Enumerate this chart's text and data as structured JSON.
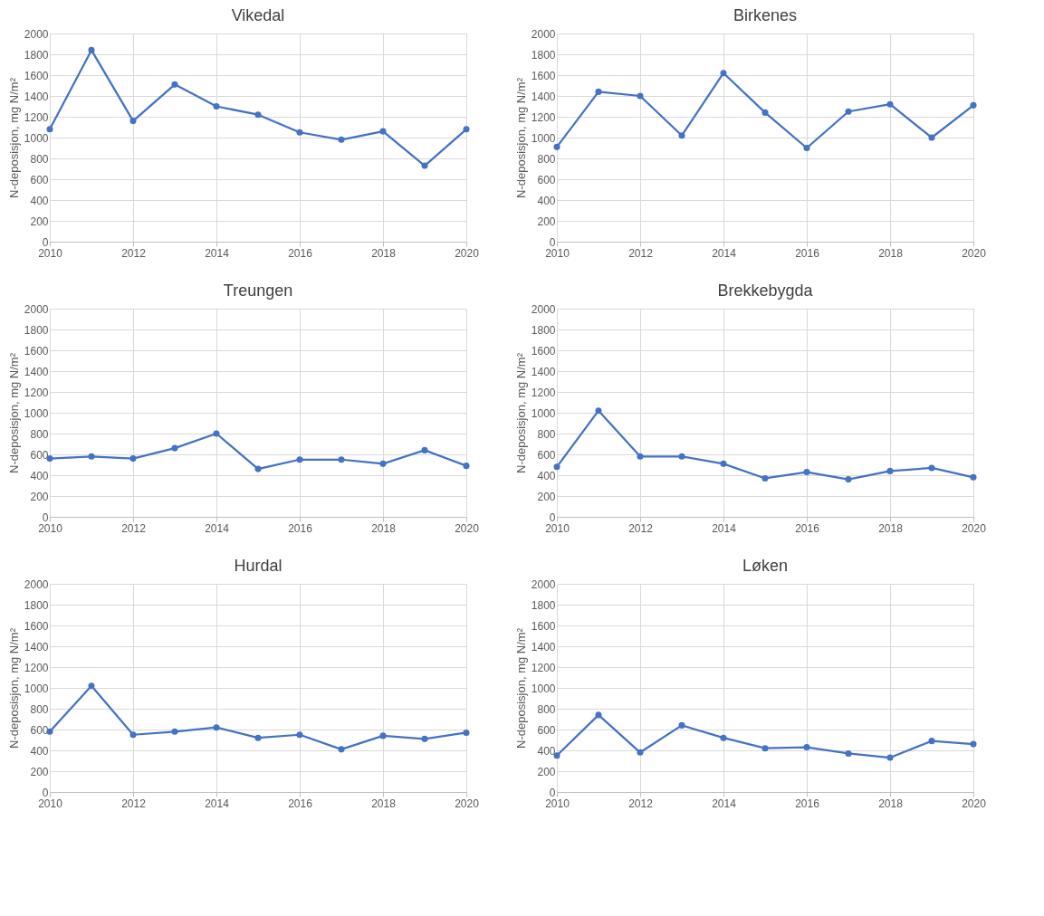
{
  "chart_data": [
    {
      "type": "line",
      "title": "Vikedal",
      "ylabel": "N-deposisjon, mg N/m²",
      "x": [
        2010,
        2011,
        2012,
        2013,
        2014,
        2015,
        2016,
        2017,
        2018,
        2019,
        2020
      ],
      "series": [
        {
          "color": "#4472c4",
          "values": [
            1080,
            1840,
            1160,
            1510,
            1300,
            1220,
            1050,
            980,
            1060,
            730,
            1080
          ]
        }
      ],
      "xlim": [
        2010,
        2020
      ],
      "xticks": [
        2010,
        2012,
        2014,
        2016,
        2018,
        2020
      ],
      "ylim": [
        0,
        2000
      ],
      "yticks": [
        0,
        200,
        400,
        600,
        800,
        1000,
        1200,
        1400,
        1600,
        1800,
        2000
      ],
      "grid": true,
      "marker": "circle",
      "line_style": "solid"
    },
    {
      "type": "line",
      "title": "Birkenes",
      "ylabel": "N-deposisjon, mg N/m²",
      "x": [
        2010,
        2011,
        2012,
        2013,
        2014,
        2015,
        2016,
        2017,
        2018,
        2019,
        2020
      ],
      "series": [
        {
          "color": "#4472c4",
          "values": [
            910,
            1440,
            1400,
            1020,
            1620,
            1240,
            900,
            1250,
            1320,
            1000,
            1310
          ]
        }
      ],
      "xlim": [
        2010,
        2020
      ],
      "xticks": [
        2010,
        2012,
        2014,
        2016,
        2018,
        2020
      ],
      "ylim": [
        0,
        2000
      ],
      "yticks": [
        0,
        200,
        400,
        600,
        800,
        1000,
        1200,
        1400,
        1600,
        1800,
        2000
      ],
      "grid": true,
      "marker": "circle",
      "line_style": "solid"
    },
    {
      "type": "line",
      "title": "Treungen",
      "ylabel": "N-deposisjon, mg N/m²",
      "x": [
        2010,
        2011,
        2012,
        2013,
        2014,
        2015,
        2016,
        2017,
        2018,
        2019,
        2020
      ],
      "series": [
        {
          "color": "#4472c4",
          "values": [
            560,
            580,
            560,
            660,
            800,
            460,
            550,
            550,
            510,
            640,
            490
          ]
        }
      ],
      "xlim": [
        2010,
        2020
      ],
      "xticks": [
        2010,
        2012,
        2014,
        2016,
        2018,
        2020
      ],
      "ylim": [
        0,
        2000
      ],
      "yticks": [
        0,
        200,
        400,
        600,
        800,
        1000,
        1200,
        1400,
        1600,
        1800,
        2000
      ],
      "grid": true,
      "marker": "circle",
      "line_style": "solid"
    },
    {
      "type": "line",
      "title": "Brekkebygda",
      "ylabel": "N-deposisjon, mg N/m²",
      "x": [
        2010,
        2011,
        2012,
        2013,
        2014,
        2015,
        2016,
        2017,
        2018,
        2019,
        2020
      ],
      "series": [
        {
          "color": "#4472c4",
          "values": [
            480,
            1020,
            580,
            580,
            510,
            370,
            430,
            360,
            440,
            470,
            380
          ]
        }
      ],
      "xlim": [
        2010,
        2020
      ],
      "xticks": [
        2010,
        2012,
        2014,
        2016,
        2018,
        2020
      ],
      "ylim": [
        0,
        2000
      ],
      "yticks": [
        0,
        200,
        400,
        600,
        800,
        1000,
        1200,
        1400,
        1600,
        1800,
        2000
      ],
      "grid": true,
      "marker": "circle",
      "line_style": "solid"
    },
    {
      "type": "line",
      "title": "Hurdal",
      "ylabel": "N-deposisjon, mg N/m²",
      "x": [
        2010,
        2011,
        2012,
        2013,
        2014,
        2015,
        2016,
        2017,
        2018,
        2019,
        2020
      ],
      "series": [
        {
          "color": "#4472c4",
          "values": [
            580,
            1020,
            550,
            580,
            620,
            520,
            550,
            410,
            540,
            510,
            570
          ]
        }
      ],
      "xlim": [
        2010,
        2020
      ],
      "xticks": [
        2010,
        2012,
        2014,
        2016,
        2018,
        2020
      ],
      "ylim": [
        0,
        2000
      ],
      "yticks": [
        0,
        200,
        400,
        600,
        800,
        1000,
        1200,
        1400,
        1600,
        1800,
        2000
      ],
      "grid": true,
      "marker": "circle",
      "line_style": "solid"
    },
    {
      "type": "line",
      "title": "Løken",
      "ylabel": "N-deposisjon, mg N/m²",
      "x": [
        2010,
        2011,
        2012,
        2013,
        2014,
        2015,
        2016,
        2017,
        2018,
        2019,
        2020
      ],
      "series": [
        {
          "color": "#4472c4",
          "values": [
            350,
            740,
            380,
            640,
            520,
            420,
            430,
            370,
            330,
            490,
            460
          ]
        }
      ],
      "xlim": [
        2010,
        2020
      ],
      "xticks": [
        2010,
        2012,
        2014,
        2016,
        2018,
        2020
      ],
      "ylim": [
        0,
        2000
      ],
      "yticks": [
        0,
        200,
        400,
        600,
        800,
        1000,
        1200,
        1400,
        1600,
        1800,
        2000
      ],
      "grid": true,
      "marker": "circle",
      "line_style": "solid"
    }
  ]
}
